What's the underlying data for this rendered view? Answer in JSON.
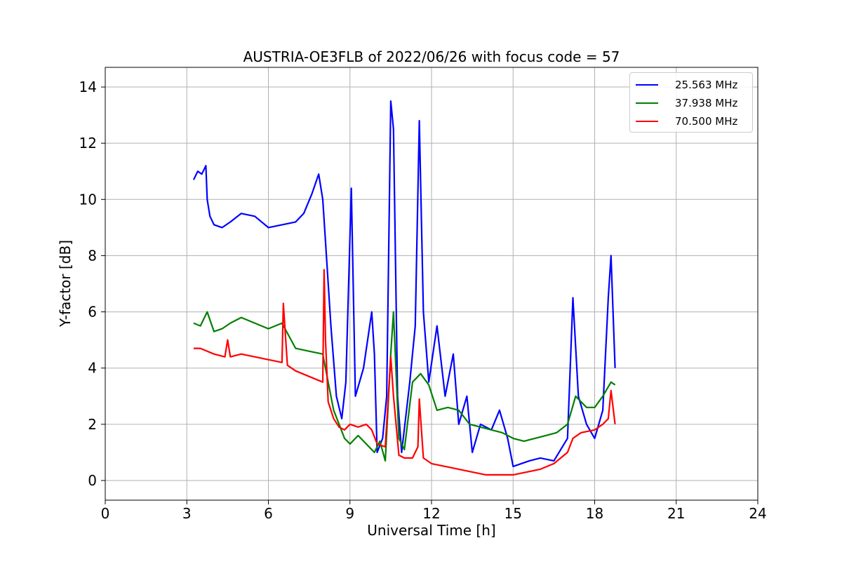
{
  "chart_data": {
    "type": "line",
    "title": "AUSTRIA-OE3FLB of 2022/06/26 with focus code = 57",
    "xlabel": "Universal Time [h]",
    "ylabel": "Y-factor [dB]",
    "xlim": [
      0,
      24
    ],
    "ylim": [
      -0.7,
      14.7
    ],
    "xticks": [
      0,
      3,
      6,
      9,
      12,
      15,
      18,
      21,
      24
    ],
    "yticks": [
      0,
      2,
      4,
      6,
      8,
      10,
      12,
      14
    ],
    "grid": true,
    "legend_position": "top-right",
    "series": [
      {
        "name": "25.563 MHz",
        "color": "#0000ff",
        "x": [
          3.25,
          3.4,
          3.55,
          3.7,
          3.75,
          3.85,
          4.0,
          4.3,
          4.6,
          5.0,
          5.5,
          6.0,
          6.5,
          7.0,
          7.3,
          7.6,
          7.85,
          8.0,
          8.1,
          8.3,
          8.5,
          8.7,
          8.85,
          9.05,
          9.2,
          9.5,
          9.8,
          9.9,
          10.0,
          10.2,
          10.35,
          10.5,
          10.6,
          10.75,
          10.9,
          11.2,
          11.4,
          11.55,
          11.7,
          11.9,
          12.2,
          12.5,
          12.8,
          13.0,
          13.3,
          13.5,
          13.8,
          14.2,
          14.5,
          14.8,
          15.0,
          15.3,
          15.6,
          16.0,
          16.5,
          17.0,
          17.2,
          17.4,
          17.7,
          18.0,
          18.3,
          18.5,
          18.6,
          18.75
        ],
        "y": [
          10.7,
          11.0,
          10.9,
          11.2,
          10.0,
          9.4,
          9.1,
          9.0,
          9.2,
          9.5,
          9.4,
          9.0,
          9.1,
          9.2,
          9.5,
          10.2,
          10.9,
          10.0,
          8.5,
          5.5,
          3.0,
          2.2,
          3.5,
          10.4,
          3.0,
          4.0,
          6.0,
          4.5,
          1.0,
          1.5,
          3.0,
          13.5,
          12.5,
          3.0,
          1.0,
          3.5,
          5.5,
          12.8,
          6.0,
          3.5,
          5.5,
          3.0,
          4.5,
          2.0,
          3.0,
          1.0,
          2.0,
          1.8,
          2.5,
          1.5,
          0.5,
          0.6,
          0.7,
          0.8,
          0.7,
          1.5,
          6.5,
          3.0,
          2.0,
          1.5,
          2.5,
          6.5,
          8.0,
          4.0
        ]
      },
      {
        "name": "37.938 MHz",
        "color": "#008000",
        "x": [
          3.25,
          3.5,
          3.75,
          4.0,
          4.3,
          4.6,
          5.0,
          5.5,
          6.0,
          6.5,
          7.0,
          7.5,
          8.0,
          8.2,
          8.4,
          8.6,
          8.8,
          9.0,
          9.3,
          9.6,
          9.9,
          10.1,
          10.3,
          10.5,
          10.6,
          10.8,
          11.0,
          11.3,
          11.6,
          11.9,
          12.2,
          12.6,
          13.0,
          13.4,
          13.8,
          14.2,
          14.6,
          15.0,
          15.4,
          15.8,
          16.2,
          16.6,
          17.0,
          17.3,
          17.7,
          18.0,
          18.3,
          18.6,
          18.75
        ],
        "y": [
          5.6,
          5.5,
          6.0,
          5.3,
          5.4,
          5.6,
          5.8,
          5.6,
          5.4,
          5.6,
          4.7,
          4.6,
          4.5,
          3.5,
          2.5,
          2.0,
          1.5,
          1.3,
          1.6,
          1.3,
          1.0,
          1.4,
          0.7,
          4.5,
          6.0,
          1.5,
          1.1,
          3.5,
          3.8,
          3.4,
          2.5,
          2.6,
          2.5,
          2.0,
          1.9,
          1.8,
          1.7,
          1.5,
          1.4,
          1.5,
          1.6,
          1.7,
          2.0,
          3.0,
          2.6,
          2.6,
          3.0,
          3.5,
          3.4
        ]
      },
      {
        "name": "70.500 MHz",
        "color": "#ff0000",
        "x": [
          3.25,
          3.5,
          4.0,
          4.4,
          4.5,
          4.6,
          5.0,
          5.5,
          6.0,
          6.5,
          6.55,
          6.7,
          7.0,
          7.5,
          8.0,
          8.05,
          8.1,
          8.2,
          8.4,
          8.6,
          8.8,
          9.0,
          9.3,
          9.6,
          9.8,
          10.0,
          10.3,
          10.5,
          10.6,
          10.8,
          11.0,
          11.3,
          11.5,
          11.55,
          11.7,
          12.0,
          12.5,
          13.0,
          13.5,
          14.0,
          14.5,
          15.0,
          15.5,
          16.0,
          16.5,
          17.0,
          17.2,
          17.5,
          18.0,
          18.3,
          18.5,
          18.6,
          18.75
        ],
        "y": [
          4.7,
          4.7,
          4.5,
          4.4,
          5.0,
          4.4,
          4.5,
          4.4,
          4.3,
          4.2,
          6.3,
          4.1,
          3.9,
          3.7,
          3.5,
          7.5,
          5.0,
          2.8,
          2.2,
          1.9,
          1.8,
          2.0,
          1.9,
          2.0,
          1.8,
          1.3,
          1.2,
          4.4,
          3.0,
          0.9,
          0.8,
          0.8,
          1.2,
          2.9,
          0.8,
          0.6,
          0.5,
          0.4,
          0.3,
          0.2,
          0.2,
          0.2,
          0.3,
          0.4,
          0.6,
          1.0,
          1.5,
          1.7,
          1.8,
          2.0,
          2.2,
          3.2,
          2.0
        ]
      }
    ]
  }
}
